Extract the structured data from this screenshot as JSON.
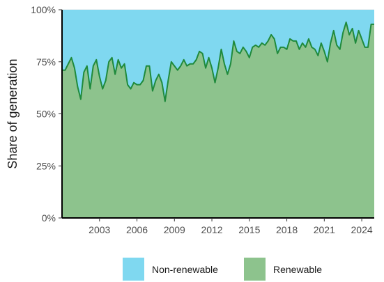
{
  "chart_data": {
    "type": "area",
    "stacked": true,
    "xlabel": "",
    "ylabel": "Share of generation",
    "x_range": [
      2000.0,
      2025.0
    ],
    "x_ticks": [
      2003,
      2006,
      2009,
      2012,
      2015,
      2018,
      2021,
      2024
    ],
    "ylim": [
      0,
      100
    ],
    "y_ticks": [
      0,
      25,
      50,
      75,
      100
    ],
    "y_tick_labels": [
      "0%",
      "25%",
      "50%",
      "75%",
      "100%"
    ],
    "legend_position": "bottom",
    "grid": true,
    "colors": {
      "Renewable": "#8dc38d",
      "Renewable_line": "#1f8a3c",
      "Non-renewable": "#7fd8f0",
      "axis": "#000000"
    },
    "series": [
      {
        "name": "Renewable",
        "role": "bottom"
      },
      {
        "name": "Non-renewable",
        "role": "top"
      }
    ],
    "renewable_share": {
      "x": [
        2000.0,
        2000.25,
        2000.5,
        2000.75,
        2001.0,
        2001.25,
        2001.5,
        2001.75,
        2002.0,
        2002.25,
        2002.5,
        2002.75,
        2003.0,
        2003.25,
        2003.5,
        2003.75,
        2004.0,
        2004.25,
        2004.5,
        2004.75,
        2005.0,
        2005.25,
        2005.5,
        2005.75,
        2006.0,
        2006.25,
        2006.5,
        2006.75,
        2007.0,
        2007.25,
        2007.5,
        2007.75,
        2008.0,
        2008.25,
        2008.5,
        2008.75,
        2009.0,
        2009.25,
        2009.5,
        2009.75,
        2010.0,
        2010.25,
        2010.5,
        2010.75,
        2011.0,
        2011.25,
        2011.5,
        2011.75,
        2012.0,
        2012.25,
        2012.5,
        2012.75,
        2013.0,
        2013.25,
        2013.5,
        2013.75,
        2014.0,
        2014.25,
        2014.5,
        2014.75,
        2015.0,
        2015.25,
        2015.5,
        2015.75,
        2016.0,
        2016.25,
        2016.5,
        2016.75,
        2017.0,
        2017.25,
        2017.5,
        2017.75,
        2018.0,
        2018.25,
        2018.5,
        2018.75,
        2019.0,
        2019.25,
        2019.5,
        2019.75,
        2020.0,
        2020.25,
        2020.5,
        2020.75,
        2021.0,
        2021.25,
        2021.5,
        2021.75,
        2022.0,
        2022.25,
        2022.5,
        2022.75,
        2023.0,
        2023.25,
        2023.5,
        2023.75,
        2024.0,
        2024.25,
        2024.5,
        2024.75,
        2025.0
      ],
      "y": [
        71,
        71,
        74,
        77,
        72,
        63,
        57,
        70,
        73,
        62,
        73,
        76,
        68,
        62,
        66,
        75,
        77,
        69,
        76,
        72,
        74,
        64,
        62,
        65,
        64,
        64,
        66,
        73,
        73,
        61,
        66,
        69,
        65,
        56,
        66,
        75,
        73,
        71,
        73,
        76,
        73,
        74,
        74,
        76,
        80,
        79,
        72,
        77,
        72,
        65,
        72,
        81,
        74,
        69,
        74,
        85,
        80,
        79,
        82,
        80,
        77,
        82,
        83,
        82,
        84,
        83,
        85,
        88,
        86,
        79,
        82,
        82,
        81,
        86,
        85,
        85,
        81,
        84,
        82,
        86,
        82,
        81,
        78,
        84,
        80,
        75,
        84,
        90,
        83,
        81,
        89,
        94,
        88,
        91,
        84,
        90,
        86,
        82,
        82,
        93,
        93
      ]
    }
  }
}
